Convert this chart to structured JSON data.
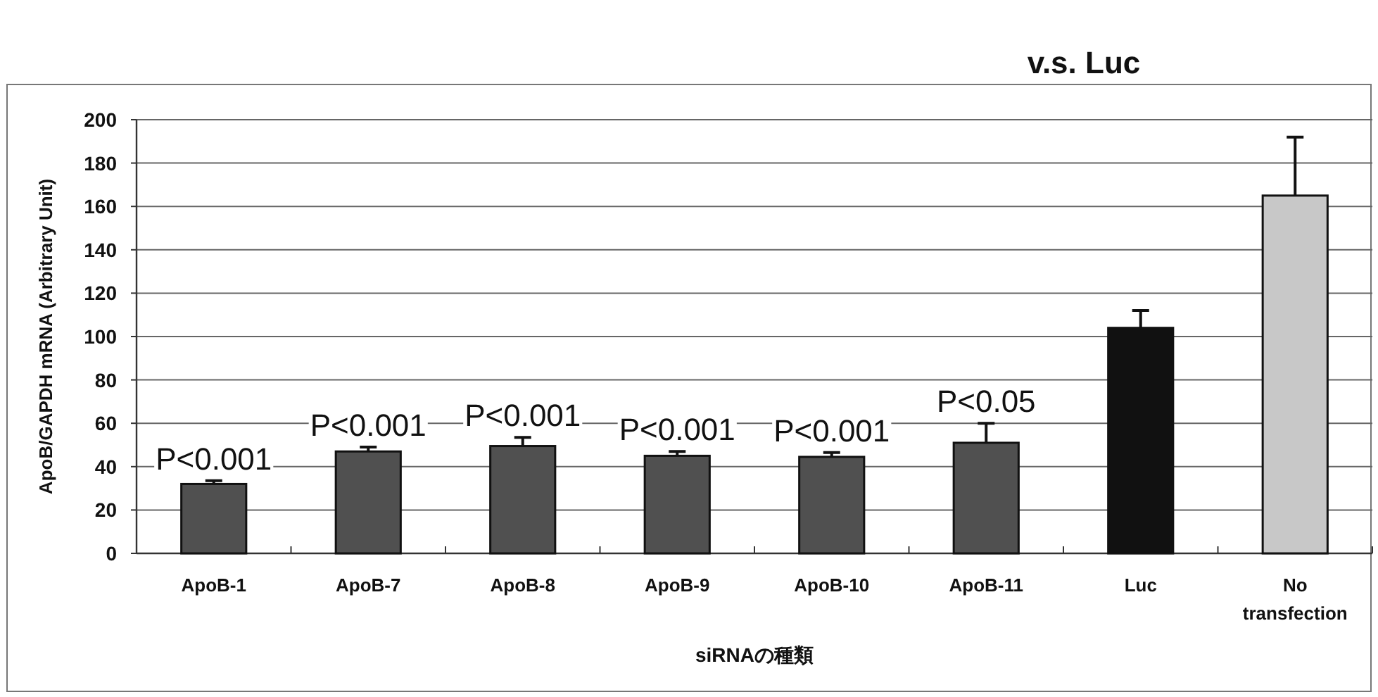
{
  "chart_data": {
    "type": "bar",
    "title": "v.s. Luc",
    "ylabel": "ApoB/GAPDH mRNA (Arbitrary Unit)",
    "xlabel": "siRNAの種類",
    "categories": [
      "ApoB-1",
      "ApoB-7",
      "ApoB-8",
      "ApoB-9",
      "ApoB-10",
      "ApoB-11",
      "Luc",
      "No transfection"
    ],
    "values": [
      32,
      47,
      49.5,
      45,
      44.5,
      51,
      104,
      165
    ],
    "errors": [
      1.5,
      2,
      4,
      2,
      2,
      9,
      8,
      27
    ],
    "colors": [
      "#505050",
      "#505050",
      "#505050",
      "#505050",
      "#505050",
      "#505050",
      "#111111",
      "#c8c8c8"
    ],
    "ylim": [
      0,
      200
    ],
    "yticks": [
      0,
      20,
      40,
      60,
      80,
      100,
      120,
      140,
      160,
      180,
      200
    ],
    "grid": "y",
    "annotations": [
      {
        "text": "P<0.001",
        "x": "ApoB-1",
        "y": 32
      },
      {
        "text": "P<0.001",
        "x": "ApoB-7",
        "y": 47
      },
      {
        "text": "P<0.001",
        "x": "ApoB-8",
        "y": 49.5
      },
      {
        "text": "P<0.001",
        "x": "ApoB-9",
        "y": 45
      },
      {
        "text": "P<0.001",
        "x": "ApoB-10",
        "y": 44.5
      },
      {
        "text": "P<0.05",
        "x": "ApoB-11",
        "y": 51
      }
    ]
  }
}
